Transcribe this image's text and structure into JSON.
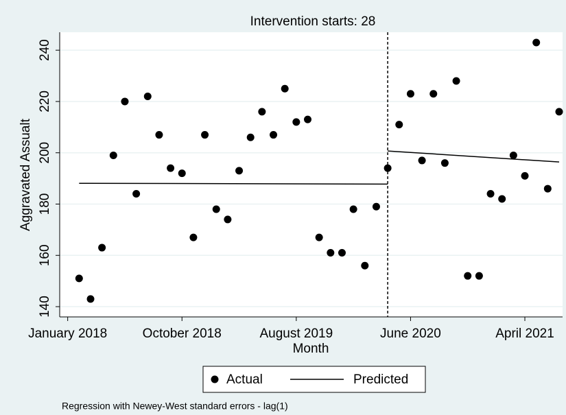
{
  "chart_data": {
    "type": "scatter",
    "title": "Intervention starts: 28",
    "x_label": "Month",
    "y_label": "Aggravated Assualt",
    "note": "Regression with Newey-West standard errors - lag(1)",
    "intervention": 28,
    "x": [
      1,
      2,
      3,
      4,
      5,
      6,
      7,
      8,
      9,
      10,
      11,
      12,
      13,
      14,
      15,
      16,
      17,
      18,
      19,
      20,
      21,
      22,
      23,
      24,
      25,
      26,
      27,
      28,
      29,
      30,
      31,
      32,
      33,
      34,
      35,
      36,
      37,
      38,
      39,
      40,
      41,
      42,
      43
    ],
    "series": [
      {
        "name": "Actual",
        "mark": "marker",
        "color": "#000000",
        "values": [
          151,
          143,
          163,
          199,
          220,
          184,
          222,
          207,
          194,
          192,
          167,
          207,
          178,
          174,
          193,
          206,
          216,
          207,
          225,
          212,
          213,
          167,
          161,
          161,
          178,
          156,
          179,
          194,
          211,
          223,
          197,
          223,
          196,
          228,
          152,
          152,
          184,
          182,
          199,
          191,
          243,
          186,
          216
        ]
      },
      {
        "name": "Predicted",
        "mark": "line",
        "color": "#000000",
        "x": [
          1,
          28,
          null,
          28,
          43
        ],
        "values": [
          188.1,
          187.8,
          null,
          200.7,
          196.4
        ]
      }
    ],
    "xlim": [
      -0.7,
      43.3
    ],
    "ylim": [
      136,
      247
    ],
    "xticks": [
      {
        "value": 0,
        "label": "January 2018"
      },
      {
        "value": 10,
        "label": "October 2018"
      },
      {
        "value": 20,
        "label": "August 2019"
      },
      {
        "value": 30,
        "label": "June 2020"
      },
      {
        "value": 40,
        "label": "April 2021"
      }
    ],
    "yticks": [
      140,
      160,
      180,
      200,
      220,
      240
    ],
    "grid": true,
    "legend": "bottom"
  }
}
